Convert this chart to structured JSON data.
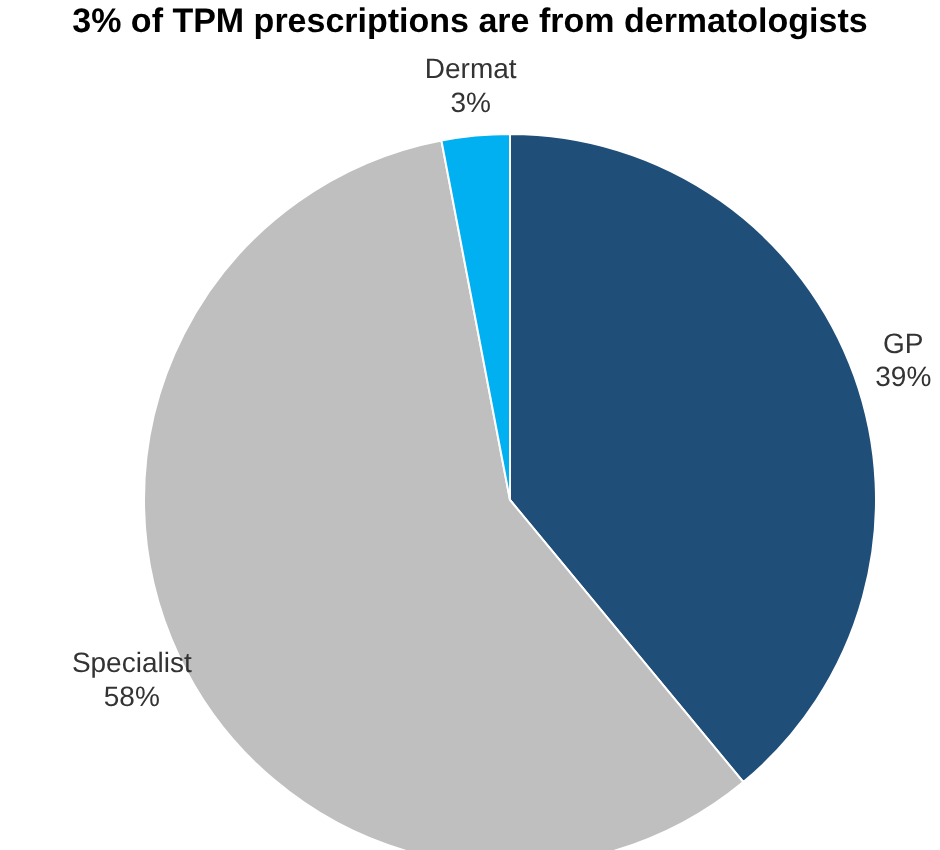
{
  "chart_data": {
    "type": "pie",
    "title": "3% of TPM prescriptions are from dermatologists",
    "categories": [
      "GP",
      "Specialist",
      "Dermat"
    ],
    "values": [
      39,
      58,
      3
    ],
    "value_labels": [
      "39%",
      "58%",
      "3%"
    ],
    "colors": [
      "#1f4e79",
      "#bfbfbf",
      "#00b0f0"
    ]
  }
}
